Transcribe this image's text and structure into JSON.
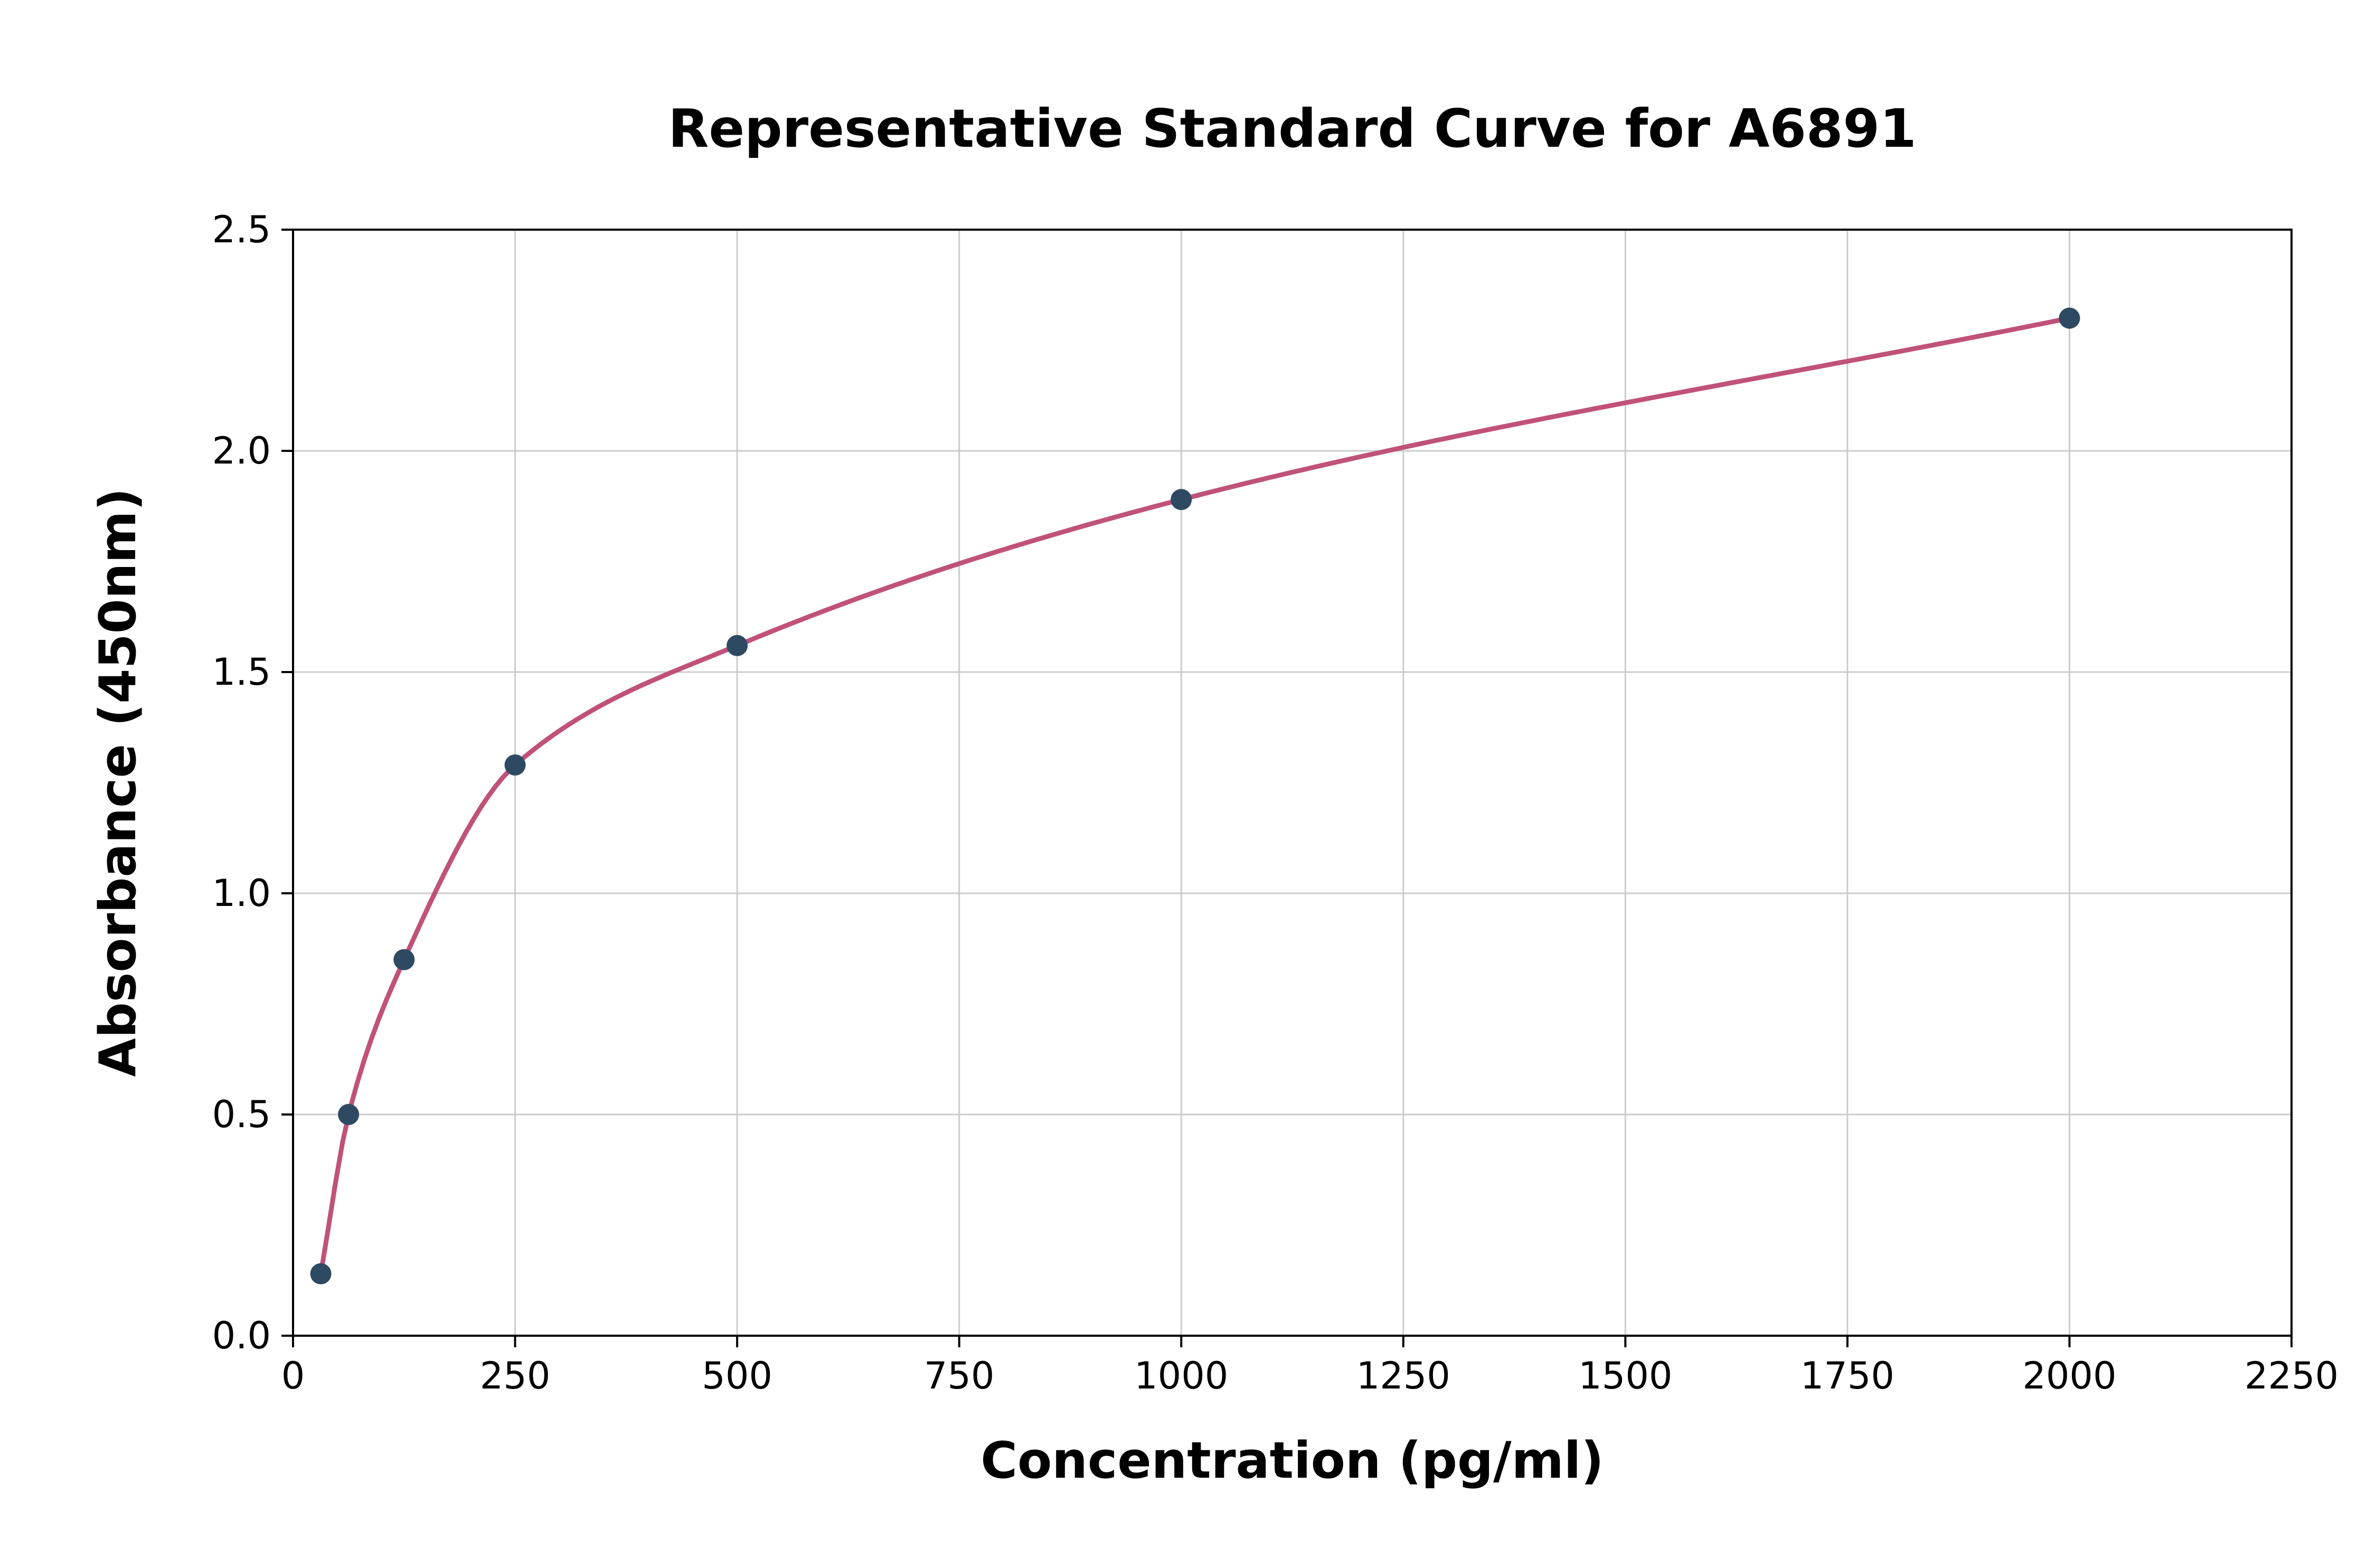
{
  "page": {
    "background": "#ffffff"
  },
  "chart_data": {
    "type": "scatter",
    "title": "Representative Standard Curve for A6891",
    "xlabel": "Concentration (pg/ml)",
    "ylabel": "Absorbance (450nm)",
    "xlim": [
      0,
      2250
    ],
    "ylim": [
      0,
      2.5
    ],
    "xticks": [
      0,
      250,
      500,
      750,
      1000,
      1250,
      1500,
      1750,
      2000,
      2250
    ],
    "ytick_labels": [
      "0.0",
      "0.5",
      "1.0",
      "1.5",
      "2.0",
      "2.5"
    ],
    "grid": true,
    "grid_color": "#cccccc",
    "axis_color": "#000000",
    "legend": "none",
    "series": [
      {
        "name": "Standard Curve",
        "x": [
          31.25,
          62.5,
          125,
          250,
          500,
          1000,
          2000
        ],
        "y": [
          0.14,
          0.5,
          0.85,
          1.29,
          1.56,
          1.89,
          2.3
        ],
        "marker_color": "#2e4a63",
        "line_color": "#c0527a",
        "fit": "smooth"
      }
    ]
  }
}
